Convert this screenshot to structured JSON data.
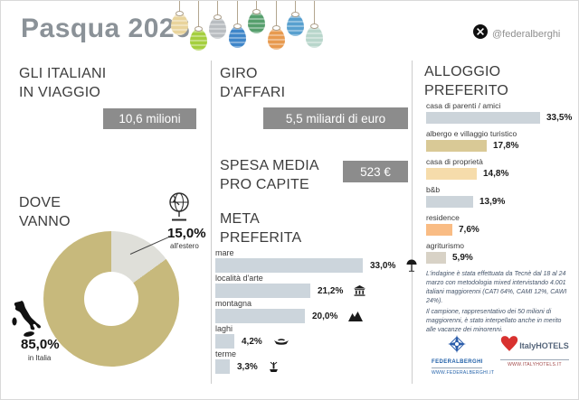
{
  "header": {
    "title": "Pasqua 2026",
    "handle": "@federalberghi",
    "x_icon": "x-logo-icon",
    "egg_colors": [
      "#e9d49c",
      "#a5cf3e",
      "#b9bdc1",
      "#3f86c9",
      "#569f6d",
      "#e89a4f",
      "#58a0cf",
      "#b8d6cb"
    ]
  },
  "left": {
    "travelers_heading_line1": "GLI ITALIANI",
    "travelers_heading_line2": "IN VIAGGIO",
    "travelers_badge": "10,6 milioni",
    "where_heading_line1": "DOVE",
    "where_heading_line2": "VANNO",
    "abroad_value": "15,0%",
    "abroad_label": "all'estero",
    "italy_value": "85,0%",
    "italy_label": "in Italia",
    "globe_icon": "globe-icon",
    "italy_icon": "italy-map-icon"
  },
  "middle": {
    "giro_heading_line1": "GIRO",
    "giro_heading_line2": "D'AFFARI",
    "giro_badge": "5,5 miliardi di euro",
    "spesa_heading_line1": "SPESA MEDIA",
    "spesa_heading_line2": "PRO CAPITE",
    "spesa_badge": "523 €",
    "meta_heading_line1": "META",
    "meta_heading_line2": "PREFERITA"
  },
  "right": {
    "heading_line1": "ALLOGGIO",
    "heading_line2": "PREFERITO",
    "note_p1": "L'indagine è stata effettuata da Tecnè dal 18 al 24 marzo con metodologia mixed intervistando 4.001 italiani maggiorenni (CATI 64%, CAMI 12%, CAWI 24%).",
    "note_p2": "Il campione, rappresentativo dei 50 milioni di maggiorenni, è stato interpellato anche in merito alle vacanze dei minorenni.",
    "logos": {
      "federalberghi": {
        "icon": "compass-logo-icon",
        "name": "FEDERALBERGHI",
        "url": "WWW.FEDERALBERGHI.IT"
      },
      "italyhotels": {
        "icon": "heart-logo-icon",
        "name": "ItalyHOTELS",
        "url": "WWW.ITALYHOTELS.IT"
      }
    }
  },
  "chart_data": [
    {
      "type": "pie",
      "title": "DOVE VANNO",
      "donut": true,
      "categories": [
        "in Italia",
        "all'estero"
      ],
      "values": [
        85.0,
        15.0
      ],
      "display": [
        "85,0%",
        "15,0%"
      ],
      "colors": [
        "#c7b97c",
        "#dfdfd9"
      ],
      "legend_position": "callout-labels"
    },
    {
      "type": "bar",
      "title": "META PREFERITA",
      "orientation": "horizontal",
      "categories": [
        "mare",
        "località d'arte",
        "montagna",
        "laghi",
        "terme"
      ],
      "values": [
        33.0,
        21.2,
        20.0,
        4.2,
        3.3
      ],
      "display": [
        "33,0%",
        "21,2%",
        "20,0%",
        "4,2%",
        "3,3%"
      ],
      "icons": [
        "umbrella-icon",
        "museum-icon",
        "mountain-icon",
        "boat-icon",
        "fountain-icon"
      ],
      "bar_color": "#ccd5dc",
      "xlim": [
        0,
        34
      ],
      "grid": false
    },
    {
      "type": "bar",
      "title": "ALLOGGIO PREFERITO",
      "orientation": "horizontal",
      "categories": [
        "casa di parenti / amici",
        "albergo e villaggio turistico",
        "casa di proprietà",
        "b&b",
        "residence",
        "agriturismo"
      ],
      "values": [
        33.5,
        17.8,
        14.8,
        13.9,
        7.6,
        5.9
      ],
      "display": [
        "33,5%",
        "17,8%",
        "14,8%",
        "13,9%",
        "7,6%",
        "5,9%"
      ],
      "bar_colors": [
        "#ccd4da",
        "#d9c996",
        "#f6dcab",
        "#ccd4da",
        "#f9bc84",
        "#d8d2c6"
      ],
      "xlim": [
        0,
        36
      ],
      "grid": false
    }
  ]
}
